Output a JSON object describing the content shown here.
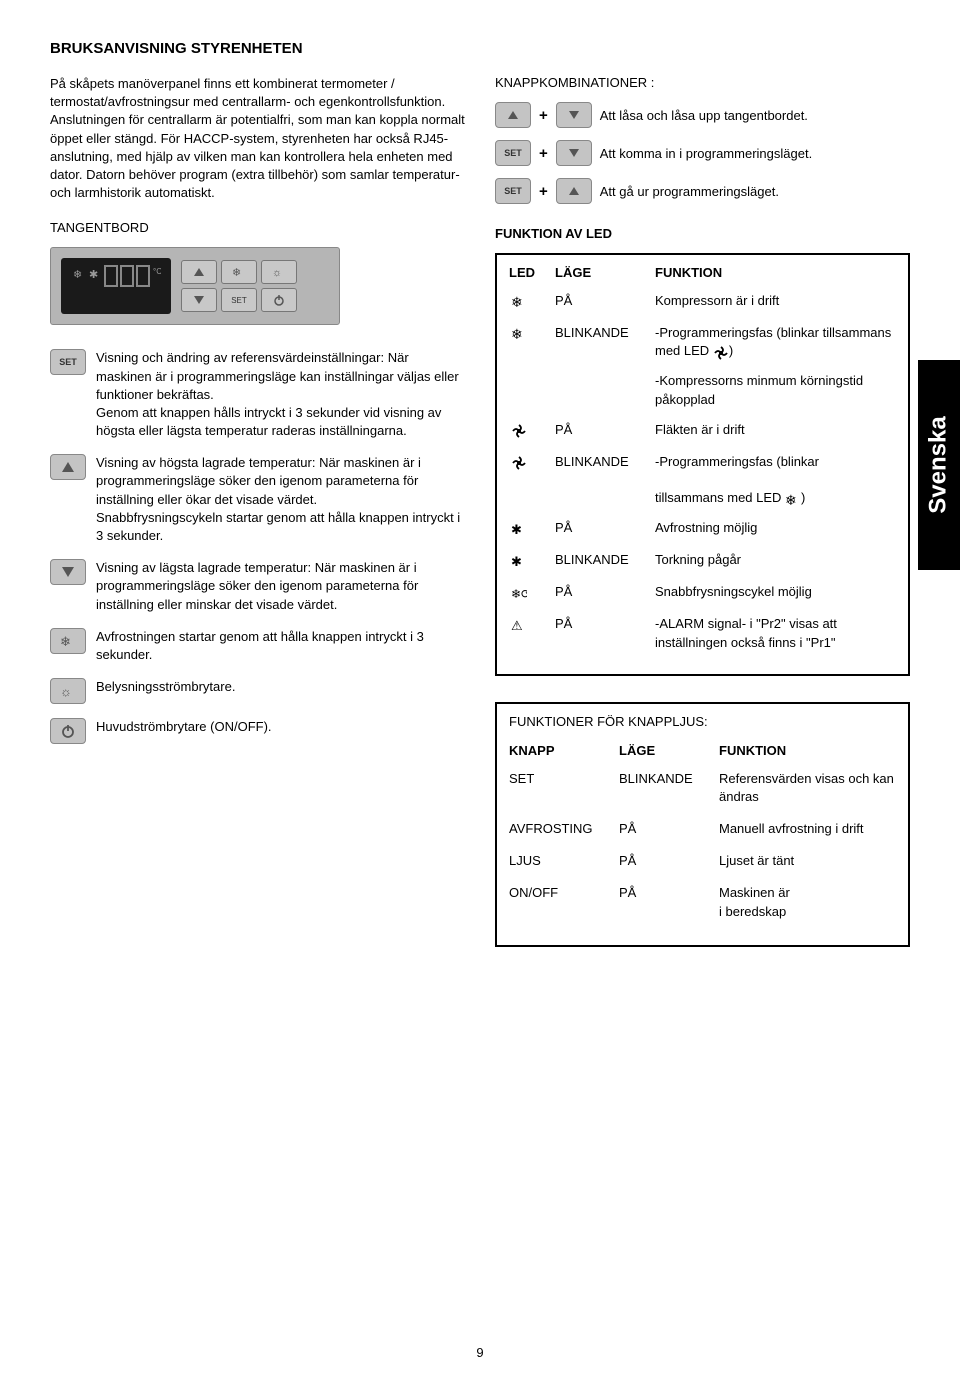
{
  "title": "BRUKSANVISNING STYRENHETEN",
  "intro": "På skåpets manöverpanel finns ett kombinerat termometer /    termostat/avfrostningsur med centrallarm- och egenkontrollsfunktion. Anslutningen för centrallarm är potentialfri, som man kan koppla normalt öppet eller stängd. För HACCP-system, styrenheten har också RJ45-anslutning, med hjälp av vilken man kan kontrollera hela enheten med dator. Datorn behöver program (extra tillbehör) som samlar temperatur- och larmhistorik  automatiskt.",
  "tangentbord_heading": "TANGENTBORD",
  "knappkomb_heading": "KNAPPKOMBINATIONER :",
  "funktion_av_led_heading": "FUNKTION AV LED",
  "descriptions": [
    {
      "text": "Visning och ändring av referensvärdeinställningar: När maskinen är i programmeringsläge kan inställningar väljas eller funktioner bekräftas.\nGenom att knappen hålls intryckt i 3 sekunder vid visning av högsta eller lägsta temperatur raderas inställningarna."
    },
    {
      "text": "Visning av högsta lagrade temperatur: När maskinen är i programmeringsläge söker den igenom parameterna för inställning eller ökar det visade värdet.\nSnabbfrysningscykeln startar genom att hålla knappen intryckt i 3 sekunder."
    },
    {
      "text": "Visning av lägsta lagrade temperatur: När maskinen är i programmeringsläge söker den igenom parameterna för inställning eller minskar det visade värdet."
    },
    {
      "text": "Avfrostningen startar genom att hålla knappen intryckt i 3 sekunder."
    },
    {
      "text": "Belysningsströmbrytare."
    },
    {
      "text": "Huvudströmbrytare (ON/OFF)."
    }
  ],
  "combos": [
    {
      "text": "Att låsa och låsa upp tangentbordet."
    },
    {
      "text": "Att komma in i programmeringsläget."
    },
    {
      "text": "Att gå ur programmeringsläget."
    }
  ],
  "led_table": {
    "headers": [
      "LED",
      "LÄGE",
      "FUNKTION"
    ],
    "rows": [
      {
        "icon": "snow",
        "mode": "PÅ",
        "func": "Kompressorn är i drift"
      },
      {
        "icon": "snow",
        "mode": "BLINKANDE",
        "func_prefix": "-Programmeringsfas  (blinkar tillsammans med LED ",
        "inline_icon": "fan",
        "func_suffix": ")"
      },
      {
        "icon": "",
        "mode": "",
        "func": "-Kompressorns  minmum körningstid påkopplad"
      },
      {
        "icon": "fan",
        "mode": "PÅ",
        "func": "Fläkten är i drift"
      },
      {
        "icon": "fan",
        "mode": "BLINKANDE",
        "func_prefix": "-Programmeringsfas  (blinkar\n\ntillsammans med LED ",
        "inline_icon": "snow",
        "func_suffix": ")"
      },
      {
        "icon": "defrost",
        "mode": "PÅ",
        "func": "Avfrostning möjlig"
      },
      {
        "icon": "defrost",
        "mode": "BLINKANDE",
        "func": "Torkning pågår"
      },
      {
        "icon": "cycle",
        "mode": "PÅ",
        "func": "Snabbfrysningscykel möjlig"
      },
      {
        "icon": "alarm",
        "mode": "PÅ",
        "func": "-ALARM signal- i \"Pr2\" visas att inställningen också finns i \"Pr1\""
      }
    ]
  },
  "knapp_table": {
    "title": "FUNKTIONER FÖR KNAPPLJUS:",
    "headers": [
      "KNAPP",
      "LÄGE",
      "FUNKTION"
    ],
    "rows": [
      {
        "knapp": "SET",
        "mode": "BLINKANDE",
        "func": "Referensvärden visas och kan ändras"
      },
      {
        "knapp": "AVFROSTING",
        "mode": "PÅ",
        "func": "Manuell avfrostning i drift"
      },
      {
        "knapp": "LJUS",
        "mode": "PÅ",
        "func": "Ljuset är tänt"
      },
      {
        "knapp": "ON/OFF",
        "mode": "PÅ",
        "func": "Maskinen är\ni beredskap"
      }
    ]
  },
  "vtab": "Svenska",
  "page_number": "9"
}
